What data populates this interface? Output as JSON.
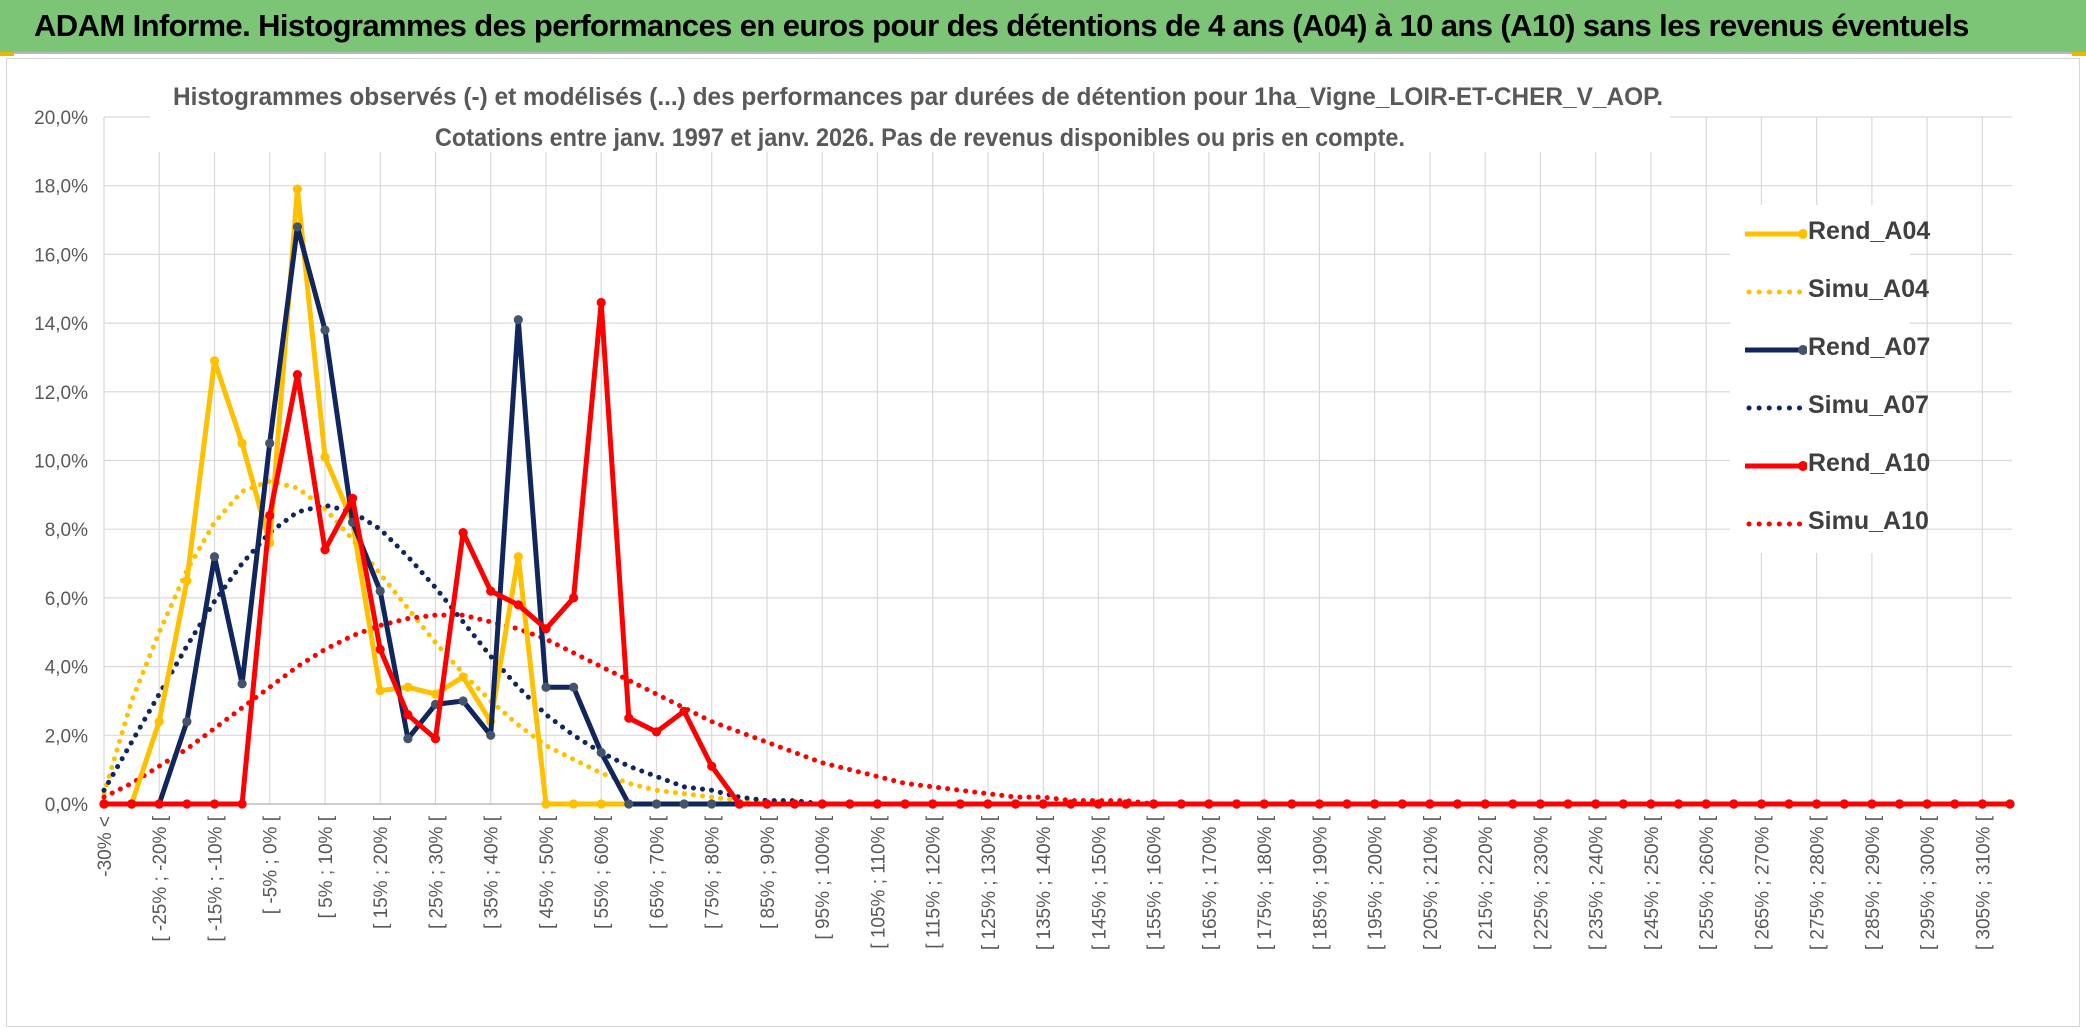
{
  "banner": {
    "title": "ADAM Informe. Histogrammes des performances en euros pour des détentions de 4 ans (A04) à 10 ans (A10) sans les revenus éventuels"
  },
  "colors": {
    "banner_bg": "#7cc576",
    "a04": "#ffc000",
    "a07": "#10265c",
    "a10": "#ff0000",
    "grid": "#d9d9d9",
    "text": "#595959"
  },
  "chart_data": {
    "type": "line",
    "title": "Histogrammes observés (-) et modélisés (...) des performances par durées de détention pour 1ha_Vigne_LOIR-ET-CHER_V_AOP.",
    "subtitle": "Cotations entre janv. 1997 et janv. 2026. Pas de revenus disponibles ou pris en compte.",
    "xlabel": "",
    "ylabel": "",
    "ylim": [
      0,
      20
    ],
    "y_ticks": [
      "0,0%",
      "2,0%",
      "4,0%",
      "6,0%",
      "8,0%",
      "10,0%",
      "12,0%",
      "14,0%",
      "16,0%",
      "18,0%",
      "20,0%"
    ],
    "x_tick_labels": [
      "-30% <",
      "[ -25% ; -20% [",
      "[ -15% ; -10% [",
      "[ -5% ; 0% [",
      "[ 5% ; 10% [",
      "[ 15% ; 20% [",
      "[ 25% ; 30% [",
      "[ 35% ; 40% [",
      "[ 45% ; 50% [",
      "[ 55% ; 60% [",
      "[ 65% ; 70% [",
      "[ 75% ; 80% [",
      "[ 85% ; 90% [",
      "[ 95% ; 100% [",
      "[ 105% ; 110% [",
      "[ 115% ; 120% [",
      "[ 125% ; 130% [",
      "[ 135% ; 140% [",
      "[ 145% ; 150% [",
      "[ 155% ; 160% [",
      "[ 165% ; 170% [",
      "[ 175% ; 180% [",
      "[ 185% ; 190% [",
      "[ 195% ; 200% [",
      "[ 205% ; 210% [",
      "[ 215% ; 220% [",
      "[ 225% ; 230% [",
      "[ 235% ; 240% [",
      "[ 245% ; 250% [",
      "[ 255% ; 260% [",
      "[ 265% ; 270% [",
      "[ 275% ; 280% [",
      "[ 285% ; 290% [",
      "[ 295% ; 300% [",
      "[ 305% ; 310% ["
    ],
    "legend_position": "right",
    "series": [
      {
        "name": "Rend_A04",
        "style": "solid",
        "color": "#ffc000",
        "values": [
          0.0,
          0.0,
          2.4,
          6.5,
          12.9,
          10.5,
          7.6,
          17.9,
          10.1,
          8.2,
          3.3,
          3.4,
          3.2,
          3.7,
          2.4,
          7.2,
          0.0,
          0.0,
          0.0,
          0.0,
          0.0,
          0.0,
          0.0,
          0.0,
          0.0,
          0.0,
          0.0,
          0.0,
          0.0,
          0.0,
          0.0,
          0.0,
          0.0,
          0.0,
          0.0,
          0.0,
          0.0,
          0.0,
          0.0,
          0.0,
          0.0,
          0.0,
          0.0,
          0.0,
          0.0,
          0.0,
          0.0,
          0.0,
          0.0,
          0.0,
          0.0,
          0.0,
          0.0,
          0.0,
          0.0,
          0.0,
          0.0,
          0.0,
          0.0,
          0.0,
          0.0,
          0.0,
          0.0,
          0.0,
          0.0,
          0.0,
          0.0,
          0.0,
          0.0,
          0.0
        ]
      },
      {
        "name": "Simu_A04",
        "style": "dotted",
        "color": "#ffc000",
        "values": [
          0.3,
          3.0,
          5.0,
          6.8,
          8.2,
          9.1,
          9.4,
          9.2,
          8.6,
          7.7,
          6.7,
          5.7,
          4.7,
          3.8,
          3.0,
          2.3,
          1.7,
          1.3,
          0.9,
          0.6,
          0.4,
          0.3,
          0.2,
          0.1,
          0.1,
          0.0,
          0.0,
          0.0,
          0.0,
          0.0,
          0.0,
          0.0,
          0.0,
          0.0,
          0.0,
          0.0,
          0.0,
          0.0,
          0.0,
          0.0,
          0.0,
          0.0,
          0.0,
          0.0,
          0.0,
          0.0,
          0.0,
          0.0,
          0.0,
          0.0,
          0.0,
          0.0,
          0.0,
          0.0,
          0.0,
          0.0,
          0.0,
          0.0,
          0.0,
          0.0,
          0.0,
          0.0,
          0.0,
          0.0,
          0.0,
          0.0,
          0.0,
          0.0,
          0.0,
          0.0
        ]
      },
      {
        "name": "Rend_A07",
        "style": "solid",
        "color": "#10265c",
        "values": [
          0.0,
          0.0,
          0.0,
          2.4,
          7.2,
          3.5,
          10.5,
          16.8,
          13.8,
          8.2,
          6.2,
          1.9,
          2.9,
          3.0,
          2.0,
          14.1,
          3.4,
          3.4,
          1.5,
          0.0,
          0.0,
          0.0,
          0.0,
          0.0,
          0.0,
          0.0,
          0.0,
          0.0,
          0.0,
          0.0,
          0.0,
          0.0,
          0.0,
          0.0,
          0.0,
          0.0,
          0.0,
          0.0,
          0.0,
          0.0,
          0.0,
          0.0,
          0.0,
          0.0,
          0.0,
          0.0,
          0.0,
          0.0,
          0.0,
          0.0,
          0.0,
          0.0,
          0.0,
          0.0,
          0.0,
          0.0,
          0.0,
          0.0,
          0.0,
          0.0,
          0.0,
          0.0,
          0.0,
          0.0,
          0.0,
          0.0,
          0.0,
          0.0,
          0.0,
          0.0
        ]
      },
      {
        "name": "Simu_A07",
        "style": "dotted",
        "color": "#10265c",
        "values": [
          0.4,
          1.8,
          3.2,
          4.6,
          5.9,
          7.0,
          7.9,
          8.5,
          8.7,
          8.5,
          8.0,
          7.2,
          6.3,
          5.3,
          4.3,
          3.4,
          2.6,
          2.0,
          1.5,
          1.1,
          0.8,
          0.5,
          0.4,
          0.2,
          0.1,
          0.1,
          0.0,
          0.0,
          0.0,
          0.0,
          0.0,
          0.0,
          0.0,
          0.0,
          0.0,
          0.0,
          0.0,
          0.0,
          0.0,
          0.0,
          0.0,
          0.0,
          0.0,
          0.0,
          0.0,
          0.0,
          0.0,
          0.0,
          0.0,
          0.0,
          0.0,
          0.0,
          0.0,
          0.0,
          0.0,
          0.0,
          0.0,
          0.0,
          0.0,
          0.0,
          0.0,
          0.0,
          0.0,
          0.0,
          0.0,
          0.0,
          0.0,
          0.0,
          0.0,
          0.0
        ]
      },
      {
        "name": "Rend_A10",
        "style": "solid",
        "color": "#ff0000",
        "values": [
          0.0,
          0.0,
          0.0,
          0.0,
          0.0,
          0.0,
          8.4,
          12.5,
          7.4,
          8.9,
          4.5,
          2.6,
          1.9,
          7.9,
          6.2,
          5.8,
          5.1,
          6.0,
          14.6,
          2.5,
          2.1,
          2.7,
          1.1,
          0.0,
          0.0,
          0.0,
          0.0,
          0.0,
          0.0,
          0.0,
          0.0,
          0.0,
          0.0,
          0.0,
          0.0,
          0.0,
          0.0,
          0.0,
          0.0,
          0.0,
          0.0,
          0.0,
          0.0,
          0.0,
          0.0,
          0.0,
          0.0,
          0.0,
          0.0,
          0.0,
          0.0,
          0.0,
          0.0,
          0.0,
          0.0,
          0.0,
          0.0,
          0.0,
          0.0,
          0.0,
          0.0,
          0.0,
          0.0,
          0.0,
          0.0,
          0.0,
          0.0,
          0.0,
          0.0,
          0.0
        ]
      },
      {
        "name": "Simu_A10",
        "style": "dotted",
        "color": "#ff0000",
        "values": [
          0.2,
          0.6,
          1.1,
          1.6,
          2.2,
          2.8,
          3.4,
          4.0,
          4.5,
          4.9,
          5.2,
          5.4,
          5.5,
          5.5,
          5.3,
          5.1,
          4.8,
          4.4,
          4.0,
          3.6,
          3.2,
          2.8,
          2.4,
          2.1,
          1.8,
          1.5,
          1.2,
          1.0,
          0.8,
          0.6,
          0.5,
          0.4,
          0.3,
          0.2,
          0.2,
          0.1,
          0.1,
          0.1,
          0.0,
          0.0,
          0.0,
          0.0,
          0.0,
          0.0,
          0.0,
          0.0,
          0.0,
          0.0,
          0.0,
          0.0,
          0.0,
          0.0,
          0.0,
          0.0,
          0.0,
          0.0,
          0.0,
          0.0,
          0.0,
          0.0,
          0.0,
          0.0,
          0.0,
          0.0,
          0.0,
          0.0,
          0.0,
          0.0,
          0.0,
          0.0
        ]
      }
    ]
  }
}
